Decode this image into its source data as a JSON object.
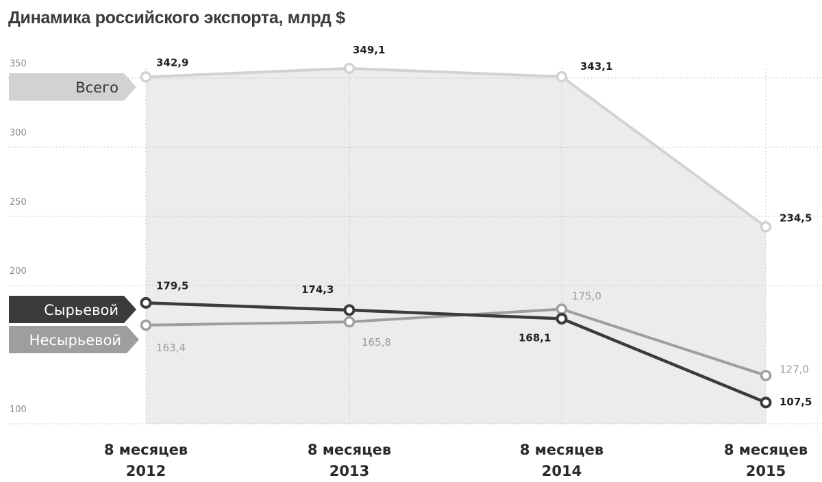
{
  "title": "Динамика российского экспорта, млрд $",
  "chart_data": {
    "type": "line",
    "title": "Динамика российского экспорта, млрд $",
    "ylim": [
      100,
      350
    ],
    "yticks": [
      "350",
      "300",
      "250",
      "200",
      "100"
    ],
    "ytick_values": [
      350,
      300,
      250,
      200,
      100
    ],
    "grid": true,
    "categories": [
      [
        "8 месяцев",
        "2012"
      ],
      [
        "8 месяцев",
        "2013"
      ],
      [
        "8 месяцев",
        "2014"
      ],
      [
        "8 месяцев",
        "2015"
      ]
    ],
    "series": [
      {
        "name": "Всего",
        "values": [
          342.9,
          349.1,
          343.1,
          234.5
        ],
        "labels": [
          "342,9",
          "349,1",
          "343,1",
          "234,5"
        ],
        "color": "#d2d2d2",
        "label_color": "#222222",
        "legend_text_color": "#333333"
      },
      {
        "name": "Сырьевой",
        "values": [
          179.5,
          174.3,
          168.1,
          107.5
        ],
        "labels": [
          "179,5",
          "174,3",
          "168,1",
          "107,5"
        ],
        "color": "#3b3b3b",
        "label_color": "#222222",
        "legend_text_color": "#ffffff"
      },
      {
        "name": "Несырьевой",
        "values": [
          163.4,
          165.8,
          175.0,
          127.0
        ],
        "labels": [
          "163,4",
          "165,8",
          "175,0",
          "127,0"
        ],
        "color": "#9e9e9e",
        "label_color": "#9a9a9a",
        "legend_text_color": "#ffffff"
      }
    ],
    "area_fill_color": "#ececec"
  }
}
